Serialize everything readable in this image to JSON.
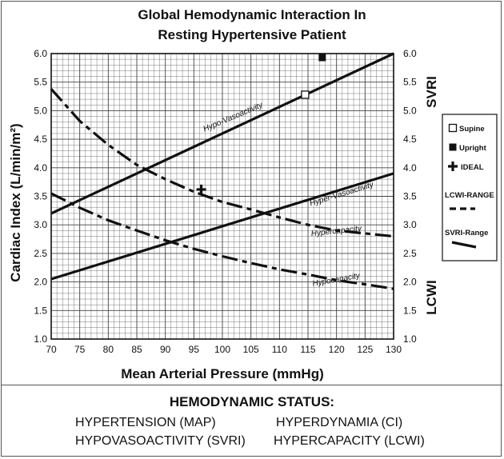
{
  "chart_data": {
    "type": "line",
    "title": "Global Hemodynamic Interaction In",
    "subtitle": "Resting Hypertensive Patient",
    "xlabel": "Mean Arterial Pressure (mmHg)",
    "ylabel_left": "Cardiac Index (L/min/m²)",
    "ylabel_right_top": "SVRI",
    "ylabel_right_bottom": "LCWI",
    "xlim": [
      70,
      130
    ],
    "ylim": [
      1.0,
      6.0
    ],
    "x_ticks": [
      "70",
      "75",
      "80",
      "85",
      "90",
      "95",
      "100",
      "105",
      "110",
      "115",
      "120",
      "125",
      "130"
    ],
    "y_ticks": [
      "1.0",
      "1.5",
      "2.0",
      "2.5",
      "3.0",
      "3.5",
      "4.0",
      "4.5",
      "5.0",
      "5.5",
      "6.0"
    ],
    "grid": true,
    "series": [
      {
        "style": "solid",
        "x": [
          70,
          130
        ],
        "y": [
          3.2,
          6.0
        ]
      },
      {
        "style": "solid",
        "x": [
          70,
          130
        ],
        "y": [
          2.05,
          3.9
        ]
      },
      {
        "style": "dashed",
        "x": [
          70,
          75,
          80,
          85,
          90,
          95,
          100,
          105,
          110,
          115,
          120,
          125,
          130
        ],
        "y": [
          5.38,
          4.82,
          4.4,
          4.05,
          3.8,
          3.58,
          3.4,
          3.27,
          3.13,
          3.0,
          2.9,
          2.85,
          2.8
        ]
      },
      {
        "style": "dashed",
        "x": [
          70,
          75,
          80,
          85,
          90,
          95,
          100,
          105,
          110,
          115,
          120,
          125,
          130
        ],
        "y": [
          3.55,
          3.3,
          3.08,
          2.9,
          2.73,
          2.58,
          2.45,
          2.33,
          2.22,
          2.13,
          2.03,
          1.96,
          1.88
        ]
      }
    ],
    "line_labels": [
      {
        "text": "Hypo-Vasoactivity",
        "x": 102,
        "y": 4.85,
        "angle": -23
      },
      {
        "text": "Hyper-Vasoactivity",
        "x": 121,
        "y": 3.5,
        "angle": -17
      },
      {
        "text": "Hypercapacity",
        "x": 120,
        "y": 2.85,
        "angle": -6
      },
      {
        "text": "Hypocapacity",
        "x": 120,
        "y": 2.0,
        "angle": -10
      }
    ],
    "markers": [
      {
        "name": "Supine",
        "symbol": "open-square",
        "x": 114.5,
        "y": 5.28
      },
      {
        "name": "Upright",
        "symbol": "filled-square",
        "x": 117.5,
        "y": 5.93
      },
      {
        "name": "IDEAL",
        "symbol": "plus",
        "x": 96.3,
        "y": 3.62
      }
    ],
    "legend": {
      "position": "right",
      "items": [
        {
          "label": "Supine",
          "symbol": "open-square"
        },
        {
          "label": "Upright",
          "symbol": "filled-square"
        },
        {
          "label": "IDEAL",
          "symbol": "plus"
        },
        {
          "label": "LCWI-RANGE",
          "symbol": "dashed-line"
        },
        {
          "label": "SVRI-Range",
          "symbol": "solid-line"
        }
      ]
    }
  },
  "status": {
    "title": "HEMODYNAMIC STATUS:",
    "items": [
      "HYPERTENSION (MAP)",
      "HYPERDYNAMIA (CI)",
      "HYPOVASOACTIVITY (SVRI)",
      "HYPERCAPACITY (LCWI)"
    ]
  },
  "colors": {
    "ink": "#111111",
    "grid": "#444444",
    "frame": "#555555",
    "background": "#ffffff"
  }
}
